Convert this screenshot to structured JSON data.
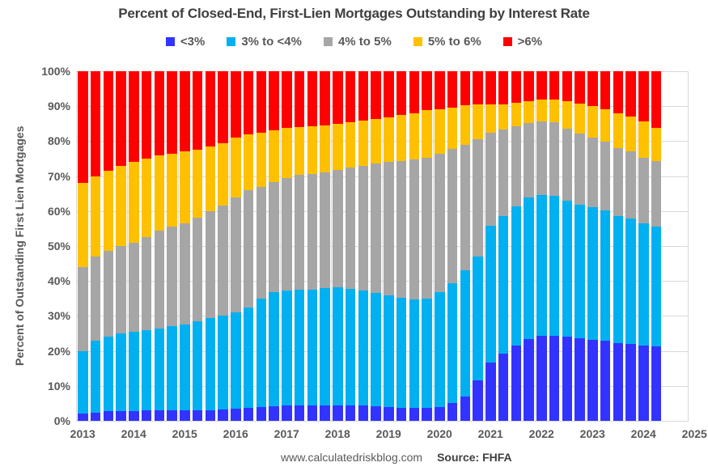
{
  "title": "Percent of Closed-End, First-Lien Mortgages Outstanding by Interest Rate",
  "y_axis": {
    "title": "Percent of Outstanding First Lien Mortgages",
    "tick_labels": [
      "100%",
      "90%",
      "80%",
      "70%",
      "60%",
      "50%",
      "40%",
      "30%",
      "20%",
      "10%",
      "0%"
    ]
  },
  "x_axis": {
    "year_labels": [
      "2013",
      "2014",
      "2015",
      "2016",
      "2017",
      "2018",
      "2019",
      "2020",
      "2021",
      "2022",
      "2023",
      "2024",
      "2025"
    ]
  },
  "footer": {
    "site": "www.calculatedriskblog.com",
    "source": "Source: FHFA"
  },
  "colors": {
    "background": "#FFFFFF",
    "gridline": "#D9D9D9",
    "axis_text": "#595959",
    "title_text": "#3F3F3F"
  },
  "chart_data": {
    "type": "bar",
    "stacked": true,
    "unit": "percent of outstanding first lien mortgages",
    "ylim": [
      0,
      100
    ],
    "y_tick_step": 10,
    "grid": true,
    "legend_position": "top",
    "x": [
      "2013 Q1",
      "2013 Q2",
      "2013 Q3",
      "2013 Q4",
      "2014 Q1",
      "2014 Q2",
      "2014 Q3",
      "2014 Q4",
      "2015 Q1",
      "2015 Q2",
      "2015 Q3",
      "2015 Q4",
      "2016 Q1",
      "2016 Q2",
      "2016 Q3",
      "2016 Q4",
      "2017 Q1",
      "2017 Q2",
      "2017 Q3",
      "2017 Q4",
      "2018 Q1",
      "2018 Q2",
      "2018 Q3",
      "2018 Q4",
      "2019 Q1",
      "2019 Q2",
      "2019 Q3",
      "2019 Q4",
      "2020 Q1",
      "2020 Q2",
      "2020 Q3",
      "2020 Q4",
      "2021 Q1",
      "2021 Q2",
      "2021 Q3",
      "2021 Q4",
      "2022 Q1",
      "2022 Q2",
      "2022 Q3",
      "2022 Q4",
      "2023 Q1",
      "2023 Q2",
      "2023 Q3",
      "2023 Q4",
      "2024 Q1",
      "2024 Q2"
    ],
    "series": [
      {
        "id": "lt3",
        "name": "<3%",
        "color": "#3333FF",
        "values": [
          2.0,
          2.4,
          2.7,
          2.8,
          2.8,
          2.9,
          2.9,
          3.0,
          3.0,
          3.0,
          3.1,
          3.2,
          3.4,
          3.6,
          3.9,
          4.1,
          4.3,
          4.4,
          4.5,
          4.5,
          4.5,
          4.4,
          4.3,
          4.2,
          3.9,
          3.7,
          3.7,
          3.8,
          3.9,
          5.0,
          6.9,
          11.6,
          16.6,
          19.1,
          21.6,
          23.3,
          24.4,
          24.4,
          24.0,
          23.6,
          23.2,
          22.9,
          22.3,
          22.0,
          21.6,
          21.3
        ]
      },
      {
        "id": "3to4",
        "name": "3% to <4%",
        "color": "#00B0F0",
        "values": [
          18.0,
          20.6,
          21.3,
          22.2,
          22.7,
          23.1,
          23.6,
          24.0,
          24.5,
          25.5,
          26.4,
          27.0,
          27.6,
          28.9,
          31.1,
          32.6,
          33.0,
          33.1,
          33.1,
          33.4,
          33.8,
          33.4,
          32.9,
          32.3,
          31.9,
          31.5,
          31.1,
          31.2,
          33.0,
          34.3,
          36.1,
          35.4,
          39.2,
          39.4,
          39.7,
          40.7,
          40.2,
          39.9,
          38.9,
          38.3,
          37.8,
          37.3,
          36.2,
          35.9,
          34.8,
          34.3
        ]
      },
      {
        "id": "4to5",
        "name": "4% to 5%",
        "color": "#A6A6A6",
        "values": [
          24.0,
          24.0,
          24.5,
          25.0,
          25.5,
          26.5,
          28.0,
          28.5,
          29.0,
          29.5,
          30.5,
          31.3,
          33.0,
          33.5,
          32.0,
          31.5,
          32.2,
          32.8,
          33.1,
          33.2,
          33.4,
          34.6,
          35.8,
          37.1,
          38.2,
          39.2,
          40.0,
          40.3,
          39.6,
          38.5,
          36.0,
          33.5,
          26.7,
          24.8,
          22.9,
          21.1,
          21.0,
          21.1,
          20.7,
          20.3,
          20.0,
          19.6,
          19.6,
          19.2,
          18.9,
          18.7
        ]
      },
      {
        "id": "5to6",
        "name": "5% to 6%",
        "color": "#FFC000",
        "values": [
          24.0,
          23.0,
          23.0,
          23.0,
          23.0,
          22.5,
          21.5,
          21.0,
          20.5,
          19.5,
          18.5,
          18.0,
          17.0,
          16.0,
          15.5,
          14.8,
          14.2,
          13.7,
          13.5,
          13.4,
          13.3,
          13.0,
          12.8,
          12.7,
          12.8,
          13.0,
          13.2,
          13.5,
          12.7,
          11.9,
          11.2,
          9.9,
          7.9,
          7.3,
          6.8,
          6.4,
          6.4,
          6.6,
          7.8,
          8.5,
          9.0,
          9.4,
          9.9,
          9.9,
          10.3,
          9.6
        ]
      },
      {
        "id": "gt6",
        "name": ">6%",
        "color": "#FF0000",
        "values": [
          32.0,
          30.0,
          28.5,
          27.0,
          26.0,
          25.0,
          24.0,
          23.5,
          23.0,
          22.5,
          21.5,
          20.5,
          19.0,
          18.0,
          17.5,
          17.0,
          16.3,
          16.0,
          15.8,
          15.5,
          15.0,
          14.6,
          14.2,
          13.7,
          13.2,
          12.6,
          12.0,
          11.2,
          10.8,
          10.3,
          9.8,
          9.6,
          9.6,
          9.4,
          9.0,
          8.5,
          8.0,
          8.0,
          8.6,
          9.3,
          10.0,
          10.8,
          12.0,
          13.0,
          14.4,
          16.1
        ]
      }
    ]
  }
}
